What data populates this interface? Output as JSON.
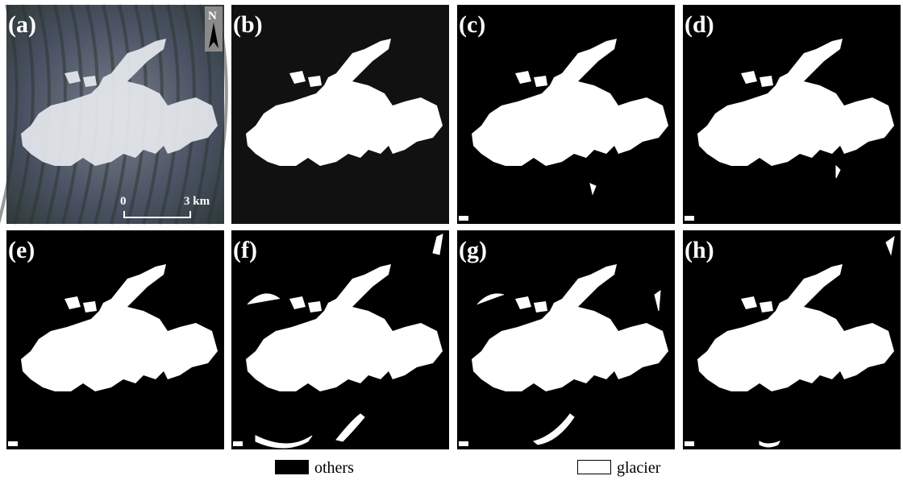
{
  "panels": [
    {
      "label": "(a)"
    },
    {
      "label": "(b)"
    },
    {
      "label": "(c)"
    },
    {
      "label": "(d)"
    },
    {
      "label": "(e)"
    },
    {
      "label": "(f)"
    },
    {
      "label": "(g)"
    },
    {
      "label": "(h)"
    }
  ],
  "north": "N",
  "scale_bar": {
    "start": "0",
    "end": "3 km"
  },
  "legend": [
    {
      "label": "others"
    },
    {
      "label": "glacier"
    }
  ]
}
